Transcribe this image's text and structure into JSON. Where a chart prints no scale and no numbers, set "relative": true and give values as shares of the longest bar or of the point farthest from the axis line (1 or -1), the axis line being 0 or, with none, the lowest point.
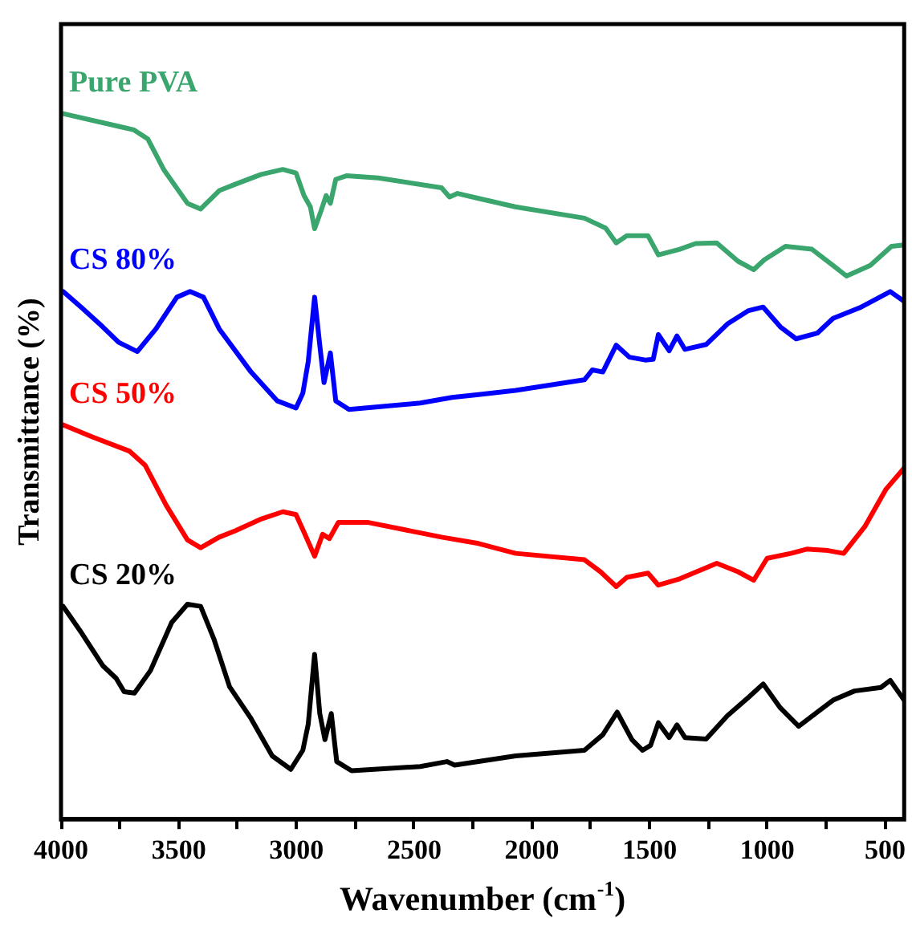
{
  "chart_data": {
    "type": "line",
    "xlabel": "Wavenumber (cm$^{-1}$)",
    "ylabel": "Transmittance (%)",
    "relative": true,
    "legend": false,
    "grid": false,
    "marker": "none",
    "line_style": "solid",
    "xlim": [
      4000,
      419
    ],
    "xticks": [
      4000,
      {
        "value": 3750,
        "label": null
      },
      3500,
      {
        "value": 3250,
        "label": null
      },
      3000,
      {
        "value": 2750,
        "label": null
      },
      2500,
      {
        "value": 2250,
        "label": null
      },
      2000,
      {
        "value": 1750,
        "label": null
      },
      1500,
      {
        "value": 1250,
        "label": null
      },
      1000,
      {
        "value": 750,
        "label": null
      },
      500
    ],
    "series": [
      {
        "name": "Pure PVA",
        "color": "#3aa66e",
        "x": [
          3991,
          3755,
          3690,
          3631,
          3564,
          3463,
          3407,
          3328,
          3260,
          3150,
          3058,
          3002,
          2968,
          2941,
          2923,
          2896,
          2874,
          2856,
          2833,
          2788,
          2653,
          2384,
          2350,
          2316,
          2227,
          2071,
          1777,
          1687,
          1642,
          1597,
          1507,
          1463,
          1372,
          1305,
          1215,
          1125,
          1058,
          1013,
          923,
          811,
          721,
          664,
          563,
          473,
          419
        ],
        "values": [
          1.0,
          0.982,
          0.977,
          0.964,
          0.921,
          0.873,
          0.865,
          0.891,
          0.9,
          0.914,
          0.921,
          0.916,
          0.884,
          0.868,
          0.837,
          0.862,
          0.884,
          0.873,
          0.907,
          0.912,
          0.909,
          0.895,
          0.882,
          0.887,
          0.88,
          0.868,
          0.852,
          0.838,
          0.817,
          0.827,
          0.827,
          0.8,
          0.808,
          0.816,
          0.817,
          0.791,
          0.779,
          0.793,
          0.812,
          0.808,
          0.785,
          0.77,
          0.785,
          0.812,
          0.814
        ]
      },
      {
        "name": "CS 80%",
        "color": "#0000ff",
        "x": [
          3991,
          3912,
          3823,
          3755,
          3676,
          3597,
          3508,
          3452,
          3395,
          3328,
          3193,
          3081,
          3002,
          2973,
          2950,
          2923,
          2901,
          2883,
          2856,
          2833,
          2777,
          2474,
          2339,
          2227,
          2069,
          1777,
          1743,
          1699,
          1642,
          1586,
          1519,
          1485,
          1463,
          1417,
          1384,
          1350,
          1260,
          1170,
          1080,
          1018,
          945,
          878,
          788,
          721,
          608,
          478,
          419
        ],
        "values": [
          0.748,
          0.725,
          0.698,
          0.676,
          0.663,
          0.695,
          0.74,
          0.748,
          0.74,
          0.695,
          0.634,
          0.593,
          0.583,
          0.604,
          0.649,
          0.74,
          0.672,
          0.619,
          0.661,
          0.593,
          0.581,
          0.59,
          0.598,
          0.602,
          0.608,
          0.623,
          0.637,
          0.634,
          0.672,
          0.655,
          0.651,
          0.652,
          0.687,
          0.664,
          0.685,
          0.666,
          0.673,
          0.702,
          0.721,
          0.726,
          0.698,
          0.681,
          0.689,
          0.71,
          0.725,
          0.748,
          0.734
        ]
      },
      {
        "name": "CS 50%",
        "color": "#ff0000",
        "x": [
          3991,
          3867,
          3710,
          3643,
          3553,
          3463,
          3407,
          3328,
          3260,
          3148,
          3058,
          3002,
          2968,
          2923,
          2889,
          2860,
          2822,
          2699,
          2384,
          2227,
          2069,
          1777,
          1709,
          1642,
          1597,
          1507,
          1463,
          1372,
          1215,
          1125,
          1058,
          1001,
          900,
          833,
          743,
          676,
          586,
          496,
          419
        ],
        "values": [
          0.559,
          0.542,
          0.522,
          0.502,
          0.445,
          0.396,
          0.385,
          0.4,
          0.409,
          0.426,
          0.436,
          0.432,
          0.407,
          0.373,
          0.404,
          0.398,
          0.421,
          0.421,
          0.4,
          0.391,
          0.377,
          0.368,
          0.351,
          0.33,
          0.343,
          0.349,
          0.332,
          0.341,
          0.363,
          0.351,
          0.339,
          0.37,
          0.377,
          0.383,
          0.381,
          0.377,
          0.415,
          0.468,
          0.498
        ]
      },
      {
        "name": "CS 20%",
        "color": "#000000",
        "x": [
          3991,
          3912,
          3823,
          3766,
          3732,
          3688,
          3620,
          3530,
          3463,
          3407,
          3351,
          3284,
          3193,
          3103,
          3024,
          2973,
          2950,
          2923,
          2901,
          2879,
          2852,
          2829,
          2766,
          2474,
          2361,
          2328,
          2227,
          2069,
          1777,
          1699,
          1638,
          1575,
          1530,
          1496,
          1463,
          1417,
          1384,
          1350,
          1260,
          1170,
          1080,
          1018,
          945,
          867,
          721,
          630,
          518,
          478,
          419
        ],
        "values": [
          0.302,
          0.264,
          0.218,
          0.2,
          0.181,
          0.179,
          0.211,
          0.279,
          0.305,
          0.302,
          0.256,
          0.188,
          0.143,
          0.09,
          0.071,
          0.098,
          0.135,
          0.234,
          0.15,
          0.113,
          0.15,
          0.082,
          0.069,
          0.075,
          0.082,
          0.077,
          0.082,
          0.09,
          0.098,
          0.12,
          0.152,
          0.113,
          0.098,
          0.105,
          0.137,
          0.116,
          0.134,
          0.116,
          0.114,
          0.147,
          0.173,
          0.192,
          0.158,
          0.132,
          0.169,
          0.182,
          0.187,
          0.197,
          0.169
        ]
      }
    ]
  }
}
